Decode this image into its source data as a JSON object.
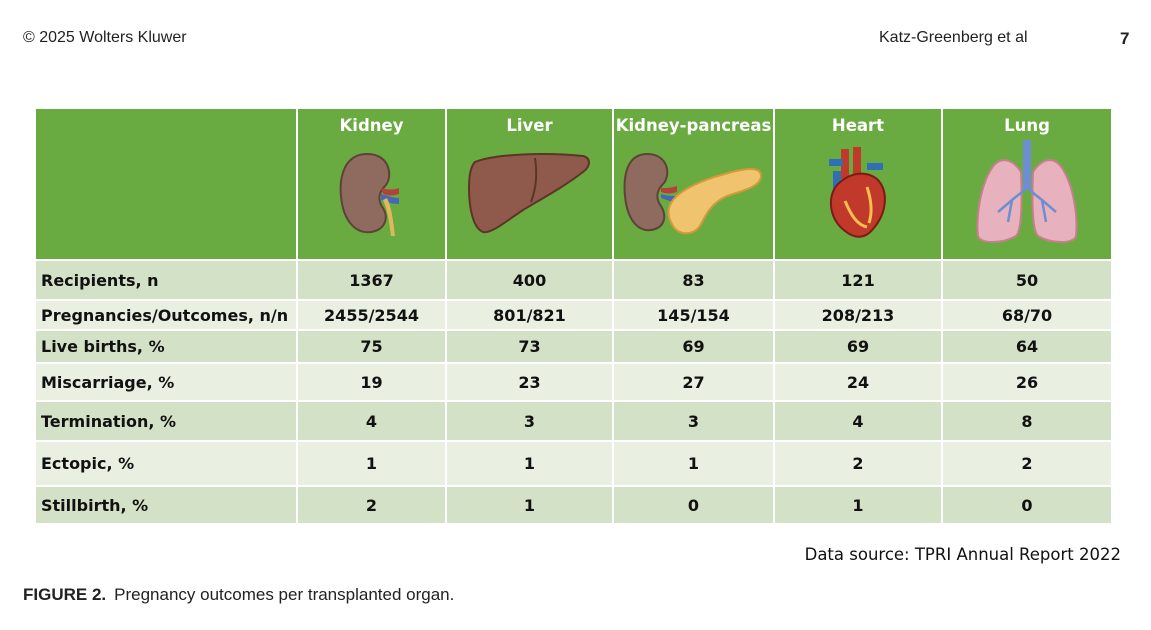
{
  "header": {
    "copyright": "© 2025 Wolters Kluwer",
    "authors": "Katz-Greenberg et al",
    "page_number": "7"
  },
  "table": {
    "columns": [
      {
        "label": "Kidney",
        "icon": "kidney-icon"
      },
      {
        "label": "Liver",
        "icon": "liver-icon"
      },
      {
        "label": "Kidney-pancreas",
        "icon": "kidney-pancreas-icon"
      },
      {
        "label": "Heart",
        "icon": "heart-icon"
      },
      {
        "label": "Lung",
        "icon": "lung-icon"
      }
    ],
    "rows": [
      {
        "label": "Recipients, n",
        "values": [
          "1367",
          "400",
          "83",
          "121",
          "50"
        ]
      },
      {
        "label": "Pregnancies/Outcomes, n/n",
        "values": [
          "2455/2544",
          "801/821",
          "145/154",
          "208/213",
          "68/70"
        ]
      },
      {
        "label": "Live births, %",
        "values": [
          "75",
          "73",
          "69",
          "69",
          "64"
        ]
      },
      {
        "label": "Miscarriage, %",
        "values": [
          "19",
          "23",
          "27",
          "24",
          "26"
        ]
      },
      {
        "label": "Termination, %",
        "values": [
          "4",
          "3",
          "3",
          "4",
          "8"
        ]
      },
      {
        "label": "Ectopic, %",
        "values": [
          "1",
          "1",
          "1",
          "2",
          "2"
        ]
      },
      {
        "label": "Stillbirth, %",
        "values": [
          "2",
          "1",
          "0",
          "1",
          "0"
        ]
      }
    ]
  },
  "source": "Data source: TPRI Annual Report 2022",
  "caption": {
    "label": "FIGURE 2.",
    "text": "Pregnancy outcomes per transplanted organ."
  },
  "colors": {
    "header_green": "#6aab41",
    "row_dark": "#d3e1c6",
    "row_light": "#e9f0e2"
  }
}
